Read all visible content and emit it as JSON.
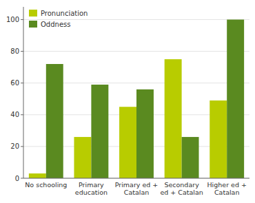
{
  "chart_data": {
    "type": "bar",
    "categories": [
      "No schooling",
      "Primary\neducation",
      "Primary ed +\nCatalan",
      "Secondary\ned + Catalan",
      "Higher ed +\nCatalan"
    ],
    "series": [
      {
        "name": "Pronunciation",
        "color": "#b8cc00",
        "values": [
          3,
          26,
          45,
          75,
          49
        ]
      },
      {
        "name": "Oddness",
        "color": "#5a8a20",
        "values": [
          72,
          59,
          56,
          26,
          100
        ]
      }
    ],
    "ylim": [
      0,
      108
    ],
    "yticks": [
      0,
      20,
      40,
      60,
      80,
      100
    ],
    "grid": true,
    "legend": "upper left"
  }
}
